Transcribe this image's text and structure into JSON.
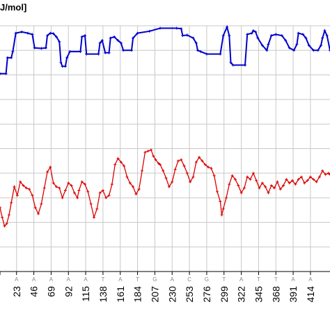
{
  "chart_data": {
    "type": "line",
    "ylabel_fragment": "J/mol]",
    "grid": true,
    "x_ticks": [
      {
        "base": "A",
        "pos": "23"
      },
      {
        "base": "A",
        "pos": "46"
      },
      {
        "base": "A",
        "pos": "69"
      },
      {
        "base": "A",
        "pos": "92"
      },
      {
        "base": "A",
        "pos": "115"
      },
      {
        "base": "T",
        "pos": "138"
      },
      {
        "base": "A",
        "pos": "161"
      },
      {
        "base": "T",
        "pos": "184"
      },
      {
        "base": "G",
        "pos": "207"
      },
      {
        "base": "A",
        "pos": "230"
      },
      {
        "base": "C",
        "pos": "253"
      },
      {
        "base": "G",
        "pos": "276"
      },
      {
        "base": "T",
        "pos": "299"
      },
      {
        "base": "A",
        "pos": "322"
      },
      {
        "base": "T",
        "pos": "345"
      },
      {
        "base": "T",
        "pos": "368"
      },
      {
        "base": "A",
        "pos": "391"
      },
      {
        "base": "A",
        "pos": "414"
      }
    ],
    "x_range": [
      1,
      440
    ],
    "y_range": [
      0,
      10
    ],
    "series": [
      {
        "color": "#0000cc",
        "points": [
          [
            1,
            8.05
          ],
          [
            9,
            8.05
          ],
          [
            11,
            8.7
          ],
          [
            16,
            8.7
          ],
          [
            18,
            8.95
          ],
          [
            22,
            9.7
          ],
          [
            30,
            9.75
          ],
          [
            38,
            9.7
          ],
          [
            44,
            9.65
          ],
          [
            47,
            9.1
          ],
          [
            56,
            9.08
          ],
          [
            62,
            9.1
          ],
          [
            64,
            9.6
          ],
          [
            68,
            9.7
          ],
          [
            72,
            9.68
          ],
          [
            76,
            9.55
          ],
          [
            80,
            9.35
          ],
          [
            82,
            8.5
          ],
          [
            84,
            8.35
          ],
          [
            88,
            8.35
          ],
          [
            90,
            8.7
          ],
          [
            94,
            8.95
          ],
          [
            108,
            8.95
          ],
          [
            110,
            9.55
          ],
          [
            114,
            9.6
          ],
          [
            116,
            8.85
          ],
          [
            132,
            8.85
          ],
          [
            134,
            9.3
          ],
          [
            137,
            9.4
          ],
          [
            141,
            8.9
          ],
          [
            146,
            8.9
          ],
          [
            148,
            9.5
          ],
          [
            153,
            9.55
          ],
          [
            158,
            9.4
          ],
          [
            162,
            9.3
          ],
          [
            165,
            9.0
          ],
          [
            176,
            9.0
          ],
          [
            178,
            9.5
          ],
          [
            184,
            9.7
          ],
          [
            200,
            9.78
          ],
          [
            214,
            9.9
          ],
          [
            236,
            9.9
          ],
          [
            242,
            9.88
          ],
          [
            244,
            9.6
          ],
          [
            250,
            9.62
          ],
          [
            258,
            9.5
          ],
          [
            262,
            9.3
          ],
          [
            264,
            9.0
          ],
          [
            268,
            8.95
          ],
          [
            276,
            8.85
          ],
          [
            294,
            8.85
          ],
          [
            298,
            9.6
          ],
          [
            303,
            9.95
          ],
          [
            306,
            9.6
          ],
          [
            308,
            8.5
          ],
          [
            311,
            8.4
          ],
          [
            327,
            8.4
          ],
          [
            330,
            9.65
          ],
          [
            336,
            9.7
          ],
          [
            338,
            9.8
          ],
          [
            341,
            9.75
          ],
          [
            344,
            9.5
          ],
          [
            350,
            9.2
          ],
          [
            356,
            9.0
          ],
          [
            358,
            9.25
          ],
          [
            362,
            9.6
          ],
          [
            368,
            9.65
          ],
          [
            376,
            9.6
          ],
          [
            381,
            9.4
          ],
          [
            386,
            9.1
          ],
          [
            392,
            9.0
          ],
          [
            396,
            9.25
          ],
          [
            398,
            9.7
          ],
          [
            404,
            9.65
          ],
          [
            408,
            9.5
          ],
          [
            412,
            9.2
          ],
          [
            418,
            9.0
          ],
          [
            424,
            9.0
          ],
          [
            428,
            9.2
          ],
          [
            430,
            9.5
          ],
          [
            433,
            9.8
          ],
          [
            436,
            9.6
          ],
          [
            440,
            9.0
          ]
        ]
      },
      {
        "color": "#dd0000",
        "points": [
          [
            1,
            2.6
          ],
          [
            4,
            2.2
          ],
          [
            7,
            1.85
          ],
          [
            10,
            1.95
          ],
          [
            13,
            2.3
          ],
          [
            16,
            2.8
          ],
          [
            20,
            3.45
          ],
          [
            24,
            3.1
          ],
          [
            28,
            3.65
          ],
          [
            32,
            3.5
          ],
          [
            36,
            3.4
          ],
          [
            40,
            3.35
          ],
          [
            44,
            3.1
          ],
          [
            48,
            2.6
          ],
          [
            52,
            2.35
          ],
          [
            56,
            2.75
          ],
          [
            60,
            3.4
          ],
          [
            64,
            4.05
          ],
          [
            68,
            4.25
          ],
          [
            72,
            3.6
          ],
          [
            76,
            3.45
          ],
          [
            80,
            3.4
          ],
          [
            84,
            3.0
          ],
          [
            88,
            3.3
          ],
          [
            92,
            3.6
          ],
          [
            96,
            3.5
          ],
          [
            100,
            3.2
          ],
          [
            104,
            3.0
          ],
          [
            106,
            3.3
          ],
          [
            110,
            3.65
          ],
          [
            114,
            3.55
          ],
          [
            118,
            3.25
          ],
          [
            122,
            2.75
          ],
          [
            126,
            2.2
          ],
          [
            130,
            2.55
          ],
          [
            134,
            3.2
          ],
          [
            138,
            3.3
          ],
          [
            142,
            3.0
          ],
          [
            146,
            3.1
          ],
          [
            150,
            3.55
          ],
          [
            154,
            4.35
          ],
          [
            158,
            4.6
          ],
          [
            162,
            4.45
          ],
          [
            166,
            4.3
          ],
          [
            170,
            3.85
          ],
          [
            174,
            3.6
          ],
          [
            178,
            3.45
          ],
          [
            182,
            3.15
          ],
          [
            186,
            3.35
          ],
          [
            190,
            4.1
          ],
          [
            194,
            4.85
          ],
          [
            198,
            4.9
          ],
          [
            202,
            4.95
          ],
          [
            205,
            4.7
          ],
          [
            208,
            4.55
          ],
          [
            212,
            4.4
          ],
          [
            214,
            4.35
          ],
          [
            218,
            4.1
          ],
          [
            222,
            3.8
          ],
          [
            226,
            3.45
          ],
          [
            230,
            3.65
          ],
          [
            234,
            4.15
          ],
          [
            238,
            4.5
          ],
          [
            242,
            4.55
          ],
          [
            246,
            4.3
          ],
          [
            250,
            4.0
          ],
          [
            254,
            3.65
          ],
          [
            258,
            3.85
          ],
          [
            262,
            4.45
          ],
          [
            266,
            4.65
          ],
          [
            270,
            4.5
          ],
          [
            274,
            4.35
          ],
          [
            278,
            4.25
          ],
          [
            282,
            4.2
          ],
          [
            286,
            3.9
          ],
          [
            290,
            3.25
          ],
          [
            294,
            2.85
          ],
          [
            296,
            2.3
          ],
          [
            298,
            2.55
          ],
          [
            302,
            3.0
          ],
          [
            306,
            3.55
          ],
          [
            310,
            3.9
          ],
          [
            314,
            3.75
          ],
          [
            318,
            3.5
          ],
          [
            322,
            3.2
          ],
          [
            326,
            3.4
          ],
          [
            330,
            3.85
          ],
          [
            334,
            3.75
          ],
          [
            338,
            4.0
          ],
          [
            342,
            3.7
          ],
          [
            346,
            3.4
          ],
          [
            350,
            3.6
          ],
          [
            354,
            3.45
          ],
          [
            358,
            3.2
          ],
          [
            362,
            3.5
          ],
          [
            366,
            3.4
          ],
          [
            370,
            3.65
          ],
          [
            374,
            3.35
          ],
          [
            378,
            3.5
          ],
          [
            382,
            3.75
          ],
          [
            386,
            3.6
          ],
          [
            390,
            3.7
          ],
          [
            394,
            3.55
          ],
          [
            398,
            3.75
          ],
          [
            402,
            3.85
          ],
          [
            406,
            3.6
          ],
          [
            410,
            3.7
          ],
          [
            414,
            3.85
          ],
          [
            418,
            3.75
          ],
          [
            422,
            3.65
          ],
          [
            426,
            3.85
          ],
          [
            430,
            4.1
          ],
          [
            434,
            3.95
          ],
          [
            438,
            4.0
          ],
          [
            440,
            3.95
          ]
        ]
      }
    ]
  }
}
